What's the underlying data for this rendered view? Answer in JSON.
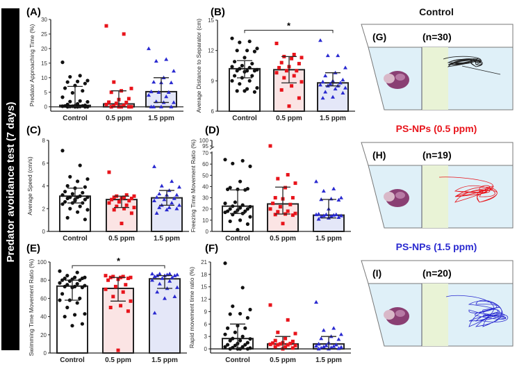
{
  "side_title": "Predator avoidance test (7 days)",
  "colors": {
    "control": "#111111",
    "low": "#e8141b",
    "high": "#2a2ad0",
    "bar_fill_control": "#ffffff",
    "bar_fill_low": "#fbe4e4",
    "bar_fill_high": "#e4e7f8",
    "tank_water": "#dff0f8",
    "separator": "#e9f3d6"
  },
  "chart_data": [
    {
      "id": "A",
      "label": "(A)",
      "type": "bar",
      "ylabel": "Predator Approaching Time (%)",
      "categories": [
        "Control",
        "0.5 ppm",
        "1.5 ppm"
      ],
      "ylim": [
        -1.5,
        30
      ],
      "yticks": [
        0,
        5,
        10,
        15,
        20,
        25,
        30
      ],
      "means": [
        0.5,
        1.0,
        5.2
      ],
      "err_low": [
        0,
        0,
        1.5
      ],
      "err_high": [
        7,
        5.5,
        10
      ],
      "points": [
        [
          15.3,
          10.7,
          10.3,
          9,
          8.7,
          8.5,
          8,
          7.3,
          6.4,
          5.5,
          4.8,
          3.3,
          2,
          1.8,
          1.7,
          1,
          0.8,
          0.5,
          0.4,
          0.3,
          0.3,
          0.2,
          0.2,
          0.1,
          0.1,
          0,
          0,
          0,
          0,
          0
        ],
        [
          27.8,
          25,
          8.5,
          6.3,
          5.5,
          5,
          2.8,
          2.5,
          1.6,
          1.5,
          1.2,
          0.8,
          0.5,
          0.3,
          0,
          0,
          0,
          0,
          0
        ],
        [
          20,
          16.3,
          15.7,
          12.3,
          10,
          8.5,
          8.3,
          8.3,
          5.2,
          5,
          5,
          4,
          3.5,
          1.8,
          1.5,
          1.5,
          0,
          0,
          0,
          0
        ]
      ]
    },
    {
      "id": "B",
      "label": "(B)",
      "type": "bar",
      "ylabel": "Average Distance to Separator (cm)",
      "categories": [
        "Control",
        "0.5 ppm",
        "1.5 ppm"
      ],
      "ylim": [
        6,
        15
      ],
      "yticks": [
        6,
        9,
        12,
        15
      ],
      "means": [
        10.2,
        10.1,
        8.8
      ],
      "err_low": [
        9.3,
        8.8,
        8.5
      ],
      "err_high": [
        11.0,
        11.4,
        9.8
      ],
      "significance": {
        "groups": [
          0,
          2
        ],
        "y": 14,
        "text": "*"
      },
      "points": [
        [
          13.2,
          12.9,
          12.8,
          12.2,
          12,
          12,
          11.9,
          11.3,
          10.9,
          10.7,
          10.5,
          10.4,
          10.3,
          10.2,
          10.1,
          10,
          10,
          10,
          9.9,
          9.5,
          9.5,
          9.3,
          9,
          9,
          8.7,
          8.3,
          8.2,
          8,
          7.9,
          8
        ],
        [
          12.7,
          11.6,
          11.4,
          11.3,
          11.2,
          10.8,
          10.7,
          10.4,
          10.3,
          10,
          10,
          9.8,
          9.5,
          9.3,
          8.9,
          8.5,
          8.1,
          7.3,
          6.5
        ],
        [
          13,
          11.5,
          11.5,
          10.3,
          9.8,
          9.5,
          9.1,
          9,
          8.9,
          8.8,
          8.7,
          8.6,
          8.5,
          8.5,
          8.3,
          8.2,
          7.9,
          7.8,
          7.4,
          7.3
        ]
      ]
    },
    {
      "id": "C",
      "label": "(C)",
      "type": "bar",
      "ylabel": "Average Speed (cm/s)",
      "categories": [
        "Control",
        "0.5 ppm",
        "1.5 ppm"
      ],
      "ylim": [
        0,
        8
      ],
      "yticks": [
        0,
        2,
        4,
        6,
        8
      ],
      "means": [
        3.1,
        2.8,
        2.95
      ],
      "err_low": [
        2.5,
        2.1,
        2.3
      ],
      "err_high": [
        3.8,
        3.1,
        3.6
      ],
      "points": [
        [
          7.1,
          5.8,
          4.8,
          4.6,
          4.4,
          4,
          3.9,
          3.8,
          3.5,
          3.4,
          3.3,
          3.2,
          3.1,
          3,
          3,
          3,
          2.9,
          2.8,
          2.7,
          2.6,
          2.5,
          2.5,
          2.4,
          2.2,
          2,
          1.9,
          1.7,
          1.2,
          1.05,
          2.8
        ],
        [
          5.2,
          3.2,
          3.1,
          3.1,
          3,
          3,
          2.9,
          2.9,
          2.8,
          2.7,
          2.6,
          2.5,
          2.3,
          2.2,
          2.1,
          2,
          1.9,
          1.6,
          0.7
        ],
        [
          5.7,
          4.4,
          4,
          3.9,
          3.6,
          3.3,
          3.2,
          3.2,
          3,
          2.9,
          2.8,
          2.7,
          2.5,
          2.3,
          2.3,
          2.1,
          2.1,
          2,
          1.9,
          1.6
        ]
      ]
    },
    {
      "id": "D",
      "label": "(D)",
      "type": "bar",
      "ylabel": "Freezing Time Movement Ratio (%)",
      "categories": [
        "Control",
        "0.5 ppm",
        "1.5 ppm"
      ],
      "ylim": [
        0,
        100
      ],
      "axis_break": [
        70,
        95
      ],
      "yticks": [
        0,
        10,
        20,
        30,
        40,
        50,
        60,
        70,
        95,
        100
      ],
      "means": [
        22.5,
        24.5,
        14.5
      ],
      "err_low": [
        16,
        15.5,
        12
      ],
      "err_high": [
        37,
        39.5,
        28.5
      ],
      "points": [
        [
          64,
          63,
          60.5,
          58,
          44.5,
          39,
          38,
          37.5,
          37.5,
          37,
          26,
          25,
          23.5,
          22.5,
          22,
          21,
          20,
          20,
          19,
          18,
          18,
          17,
          17,
          16,
          15,
          13,
          10,
          9,
          6.5,
          1.5
        ],
        [
          95,
          50.5,
          47,
          43,
          39,
          30,
          30,
          29,
          25,
          24,
          22,
          20,
          18,
          17.5,
          16,
          15.5,
          15,
          14.5,
          7
        ],
        [
          44.5,
          38,
          36,
          30,
          29,
          28.5,
          28,
          20,
          15.5,
          15,
          15,
          15,
          14.5,
          14,
          14,
          13.5,
          13,
          12.5,
          12,
          11
        ]
      ]
    },
    {
      "id": "E",
      "label": "(E)",
      "type": "bar",
      "ylabel": "Swimming Time Movement  Ratio (%)",
      "categories": [
        "Control",
        "0.5 ppm",
        "1.5 ppm"
      ],
      "ylim": [
        0,
        100
      ],
      "yticks": [
        0,
        20,
        40,
        60,
        80,
        100
      ],
      "means": [
        73.5,
        71,
        81.5
      ],
      "err_low": [
        58,
        57,
        71
      ],
      "err_high": [
        80,
        83,
        85
      ],
      "significance": {
        "groups": [
          0,
          2
        ],
        "y": 96,
        "text": "*"
      },
      "points": [
        [
          90,
          88.5,
          85,
          83,
          83,
          82,
          82,
          81,
          80,
          80,
          79,
          77,
          76,
          75,
          74,
          73,
          73,
          72,
          72,
          65,
          60,
          58,
          58,
          55,
          50,
          43,
          42,
          40,
          32,
          30
        ],
        [
          85,
          84,
          84,
          83,
          83,
          83,
          82,
          81,
          80,
          75,
          73,
          70,
          67,
          62,
          57,
          52,
          50,
          46,
          3
        ],
        [
          87,
          87,
          87,
          86,
          86,
          85,
          85,
          85,
          84,
          83,
          82,
          80,
          79,
          76,
          72,
          71,
          67,
          62,
          60,
          44
        ]
      ]
    },
    {
      "id": "F",
      "label": "(F)",
      "type": "bar",
      "ylabel": "Rapid movement time ratio (%)",
      "categories": [
        "Control",
        "0.5 ppm",
        "1.5 ppm"
      ],
      "ylim": [
        -1,
        21
      ],
      "yticks": [
        0,
        3,
        6,
        9,
        12,
        15,
        18,
        21
      ],
      "means": [
        2.5,
        1.2,
        1.2
      ],
      "err_low": [
        0,
        0,
        0
      ],
      "err_high": [
        6,
        3,
        3
      ],
      "points": [
        [
          20.7,
          14.8,
          10.3,
          9.5,
          8.5,
          8.4,
          7.5,
          5.6,
          5,
          5,
          4,
          3.5,
          3,
          2.5,
          2.4,
          2,
          2,
          1.5,
          1.3,
          1,
          1,
          0.8,
          0.5,
          0.5,
          0.3,
          0.2,
          0,
          0,
          0,
          0
        ],
        [
          10.6,
          7,
          4,
          3.7,
          2.5,
          2,
          1.8,
          1.5,
          1.4,
          1.3,
          1.2,
          1.1,
          1,
          1,
          0.8,
          0.5,
          0.5,
          0.2,
          0
        ],
        [
          11.3,
          5,
          4.5,
          3.5,
          3,
          2.5,
          2.3,
          1.5,
          1.2,
          1,
          0.8,
          0.7,
          0.6,
          0.5,
          0.4,
          0.3,
          0.2,
          0.1,
          0,
          0
        ]
      ]
    }
  ],
  "tracking_panels": [
    {
      "title": "Control",
      "title_color": "#111111",
      "label": "(G)",
      "n": "(n=30)",
      "track_color": "#222222"
    },
    {
      "title": "PS-NPs (0.5 ppm)",
      "title_color": "#e8141b",
      "label": "(H)",
      "n": "(n=19)",
      "track_color": "#e8141b"
    },
    {
      "title": "PS-NPs (1.5 ppm)",
      "title_color": "#2a2ad0",
      "label": "(I)",
      "n": "(n=20)",
      "track_color": "#2a2ad0"
    }
  ]
}
